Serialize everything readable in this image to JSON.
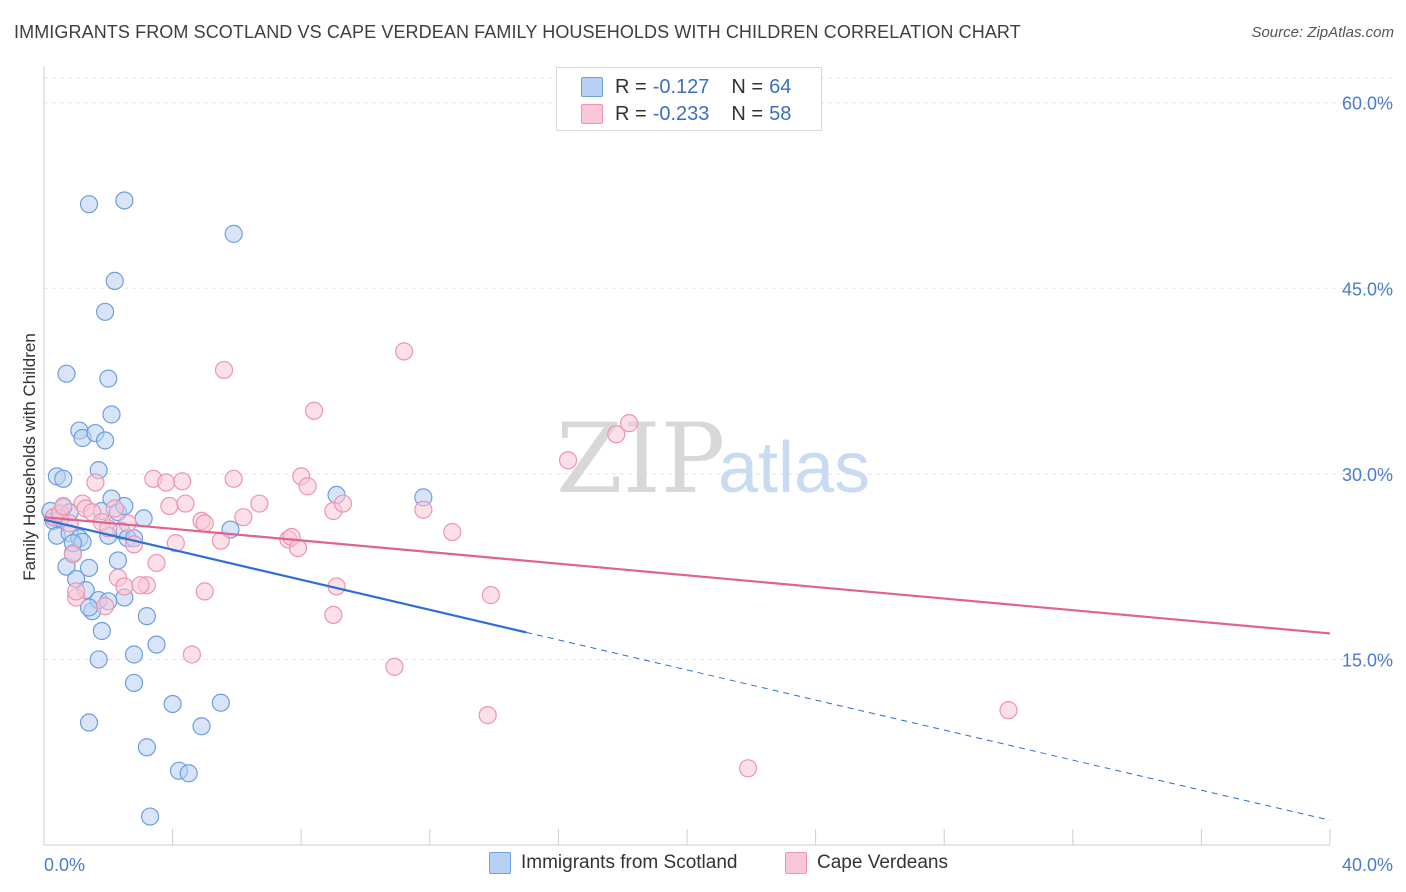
{
  "title": "IMMIGRANTS FROM SCOTLAND VS CAPE VERDEAN FAMILY HOUSEHOLDS WITH CHILDREN CORRELATION CHART",
  "source": "Source: ZipAtlas.com",
  "watermark": {
    "zip": "ZIP",
    "atlas": "atlas"
  },
  "legend": {
    "r_label": "R =",
    "n_label": "N =",
    "rows": [
      {
        "r": "-0.127",
        "n": "64",
        "fill": "#b8d0f3",
        "stroke": "#6d9ee0"
      },
      {
        "r": "-0.233",
        "n": "58",
        "fill": "#f9c7d6",
        "stroke": "#ee94b2"
      }
    ]
  },
  "chart_data": {
    "type": "scatter",
    "title": "IMMIGRANTS FROM SCOTLAND VS CAPE VERDEAN FAMILY HOUSEHOLDS WITH CHILDREN CORRELATION CHART",
    "xlabel": "",
    "ylabel": "Family Households with Children",
    "xlim": [
      0,
      40
    ],
    "ylim": [
      0,
      62
    ],
    "x_tick_labels": {
      "min": "0.0%",
      "max": "40.0%"
    },
    "y_ticks": [
      {
        "value": 15,
        "label": "15.0%"
      },
      {
        "value": 30,
        "label": "30.0%"
      },
      {
        "value": 45,
        "label": "45.0%"
      },
      {
        "value": 60,
        "label": "60.0%"
      }
    ],
    "x_minor_ticks": [
      4,
      8,
      12,
      16,
      20,
      24,
      28,
      32,
      36,
      40
    ],
    "series": [
      {
        "name": "Immigrants from Scotland",
        "color": "#6d9ee0",
        "fill": "#b8d0f3",
        "line_color": "#2e6fd4",
        "trend": {
          "x0": 0,
          "y0": 26.3,
          "x_solid_end": 15,
          "x_dash_end": 40,
          "y_dash_end": 2.0
        },
        "points": [
          [
            0.2,
            27.0
          ],
          [
            0.3,
            26.2
          ],
          [
            0.4,
            25.0
          ],
          [
            0.5,
            26.8
          ],
          [
            0.6,
            27.3
          ],
          [
            0.3,
            26.5
          ],
          [
            0.8,
            26.9
          ],
          [
            0.5,
            26.4
          ],
          [
            0.4,
            29.8
          ],
          [
            0.6,
            29.6
          ],
          [
            0.7,
            22.5
          ],
          [
            0.9,
            23.6
          ],
          [
            0.8,
            25.2
          ],
          [
            1.0,
            21.5
          ],
          [
            1.1,
            24.8
          ],
          [
            1.2,
            24.5
          ],
          [
            1.3,
            20.6
          ],
          [
            1.4,
            22.4
          ],
          [
            0.7,
            38.1
          ],
          [
            1.1,
            33.5
          ],
          [
            1.2,
            32.9
          ],
          [
            1.4,
            51.8
          ],
          [
            1.6,
            33.3
          ],
          [
            1.7,
            30.3
          ],
          [
            1.8,
            27.0
          ],
          [
            1.9,
            32.7
          ],
          [
            2.0,
            37.7
          ],
          [
            2.1,
            34.8
          ],
          [
            2.2,
            45.6
          ],
          [
            1.9,
            43.1
          ],
          [
            2.1,
            28.0
          ],
          [
            2.3,
            26.9
          ],
          [
            2.5,
            27.4
          ],
          [
            2.4,
            25.4
          ],
          [
            2.6,
            24.8
          ],
          [
            2.0,
            25.0
          ],
          [
            2.3,
            23.0
          ],
          [
            2.5,
            20.0
          ],
          [
            2.8,
            24.8
          ],
          [
            3.1,
            26.4
          ],
          [
            1.5,
            18.9
          ],
          [
            1.7,
            19.8
          ],
          [
            2.0,
            19.7
          ],
          [
            1.8,
            17.3
          ],
          [
            1.7,
            15.0
          ],
          [
            2.8,
            15.4
          ],
          [
            2.8,
            13.1
          ],
          [
            3.2,
            18.5
          ],
          [
            3.5,
            16.2
          ],
          [
            1.4,
            9.9
          ],
          [
            3.2,
            7.9
          ],
          [
            4.0,
            11.4
          ],
          [
            4.9,
            9.6
          ],
          [
            5.5,
            11.5
          ],
          [
            4.2,
            6.0
          ],
          [
            4.5,
            5.8
          ],
          [
            3.3,
            2.3
          ],
          [
            2.5,
            52.1
          ],
          [
            5.9,
            49.4
          ],
          [
            5.8,
            25.5
          ],
          [
            9.1,
            28.3
          ],
          [
            11.8,
            28.1
          ],
          [
            0.9,
            24.4
          ],
          [
            1.4,
            19.2
          ]
        ]
      },
      {
        "name": "Cape Verdeans",
        "color": "#ee94b2",
        "fill": "#f9c7d6",
        "line_color": "#e0628e",
        "trend": {
          "x0": 0,
          "y0": 26.5,
          "x_solid_end": 40,
          "y_solid_end": 17.1
        },
        "points": [
          [
            0.3,
            26.5
          ],
          [
            0.5,
            26.8
          ],
          [
            0.6,
            27.4
          ],
          [
            0.8,
            26.0
          ],
          [
            0.9,
            23.5
          ],
          [
            1.0,
            20.0
          ],
          [
            1.2,
            27.6
          ],
          [
            1.3,
            27.2
          ],
          [
            1.5,
            26.9
          ],
          [
            1.6,
            29.3
          ],
          [
            1.8,
            26.1
          ],
          [
            1.9,
            19.3
          ],
          [
            2.0,
            25.6
          ],
          [
            2.2,
            27.2
          ],
          [
            2.3,
            21.6
          ],
          [
            2.5,
            20.9
          ],
          [
            2.6,
            26.0
          ],
          [
            2.8,
            24.3
          ],
          [
            3.2,
            21.0
          ],
          [
            3.4,
            29.6
          ],
          [
            3.5,
            22.8
          ],
          [
            3.8,
            29.3
          ],
          [
            3.9,
            27.4
          ],
          [
            4.1,
            24.4
          ],
          [
            4.3,
            29.4
          ],
          [
            4.4,
            27.6
          ],
          [
            4.6,
            15.4
          ],
          [
            4.9,
            26.2
          ],
          [
            5.0,
            20.5
          ],
          [
            5.5,
            24.6
          ],
          [
            5.6,
            38.4
          ],
          [
            5.9,
            29.6
          ],
          [
            6.2,
            26.5
          ],
          [
            6.7,
            27.6
          ],
          [
            7.6,
            24.7
          ],
          [
            7.7,
            24.9
          ],
          [
            7.9,
            24.0
          ],
          [
            8.0,
            29.8
          ],
          [
            8.2,
            29.0
          ],
          [
            8.4,
            35.1
          ],
          [
            9.0,
            18.6
          ],
          [
            9.1,
            20.9
          ],
          [
            9.0,
            27.0
          ],
          [
            9.3,
            27.6
          ],
          [
            10.9,
            14.4
          ],
          [
            11.2,
            39.9
          ],
          [
            11.8,
            27.1
          ],
          [
            12.7,
            25.3
          ],
          [
            13.8,
            10.5
          ],
          [
            13.9,
            20.2
          ],
          [
            16.3,
            31.1
          ],
          [
            17.8,
            33.2
          ],
          [
            18.2,
            34.1
          ],
          [
            21.9,
            6.2
          ],
          [
            30.0,
            10.9
          ],
          [
            3.0,
            21.0
          ],
          [
            1.0,
            20.5
          ],
          [
            5.0,
            26.0
          ]
        ]
      }
    ],
    "legend_position": "top-center"
  }
}
